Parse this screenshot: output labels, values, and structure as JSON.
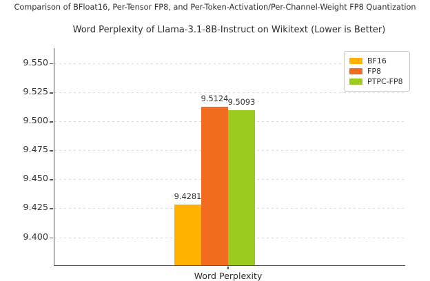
{
  "suptitle": "Comparison of BFloat16, Per-Tensor FP8, and Per-Token-Activation/Per-Channel-Weight FP8 Quantization",
  "chart_data": {
    "type": "bar",
    "title": "Word Perplexity of Llama-3.1-8B-Instruct on Wikitext (Lower is Better)",
    "xlabel": "Word Perplexity",
    "categories": [
      "Word Perplexity"
    ],
    "series": [
      {
        "name": "BF16",
        "value": 9.4281,
        "color": "#FFB300"
      },
      {
        "name": "FP8",
        "value": 9.5124,
        "color": "#F26C1F"
      },
      {
        "name": "PTPC-FP8",
        "value": 9.5093,
        "color": "#9CCB1F"
      }
    ],
    "value_labels": [
      "9.4281",
      "9.5124",
      "9.5093"
    ],
    "yticks": [
      9.4,
      9.425,
      9.45,
      9.475,
      9.5,
      9.525,
      9.55
    ],
    "ytick_labels": [
      "9.400",
      "9.425",
      "9.450",
      "9.475",
      "9.500",
      "9.525",
      "9.550"
    ],
    "ylim": [
      9.376,
      9.563
    ],
    "grid": "horizontal-dashed",
    "legend_position": "upper right",
    "legend_entries": [
      "BF16",
      "FP8",
      "PTPC-FP8"
    ]
  },
  "colors": {
    "background": "#ffffff",
    "grid": "#d9d9d9",
    "spine": "#555555",
    "text": "#333333"
  }
}
